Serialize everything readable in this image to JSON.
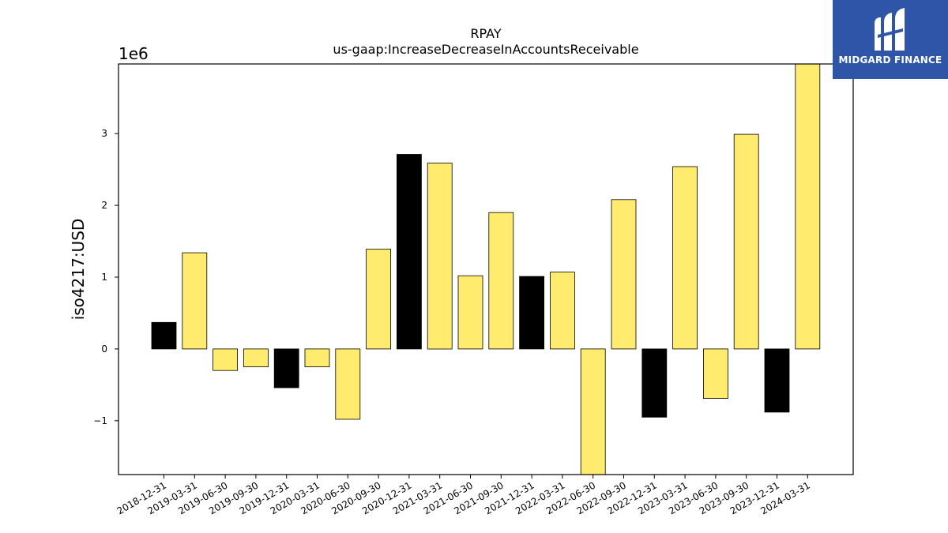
{
  "chart_data": {
    "type": "bar",
    "title": "RPAY",
    "subtitle": "us-gaap:IncreaseDecreaseInAccountsReceivable",
    "ylabel": "iso4217:USD",
    "xlabel": "",
    "y_scale_label": "1e6",
    "ylim": [
      -1.75,
      3.97
    ],
    "y_ticks": [
      -1,
      0,
      1,
      2,
      3
    ],
    "y_tick_labels": [
      "−1",
      "0",
      "1",
      "2",
      "3"
    ],
    "categories": [
      "2018-12-31",
      "2019-03-31",
      "2019-06-30",
      "2019-09-30",
      "2019-12-31",
      "2020-03-31",
      "2020-06-30",
      "2020-09-30",
      "2020-12-31",
      "2021-03-31",
      "2021-06-30",
      "2021-09-30",
      "2021-12-31",
      "2022-03-31",
      "2022-06-30",
      "2022-09-30",
      "2022-12-31",
      "2023-03-31",
      "2023-06-30",
      "2023-09-30",
      "2023-12-31",
      "2024-03-31"
    ],
    "values": [
      0.37,
      1.34,
      -0.3,
      -0.25,
      -0.54,
      -0.25,
      -0.98,
      1.39,
      2.71,
      2.59,
      1.02,
      1.9,
      1.01,
      1.07,
      -1.75,
      2.08,
      -0.95,
      2.54,
      -0.69,
      2.99,
      -0.88,
      3.97
    ],
    "highlight_categories": [
      "2018-12-31",
      "2019-12-31",
      "2020-12-31",
      "2021-12-31",
      "2022-12-31",
      "2023-12-31"
    ],
    "colors": {
      "default": "#ffeb6e",
      "highlight": "#000000",
      "edge": "#000000"
    },
    "grid": false,
    "legend": "none"
  },
  "logo": {
    "text": "MIDGARD FINANCE",
    "background": "#2e55a8"
  }
}
